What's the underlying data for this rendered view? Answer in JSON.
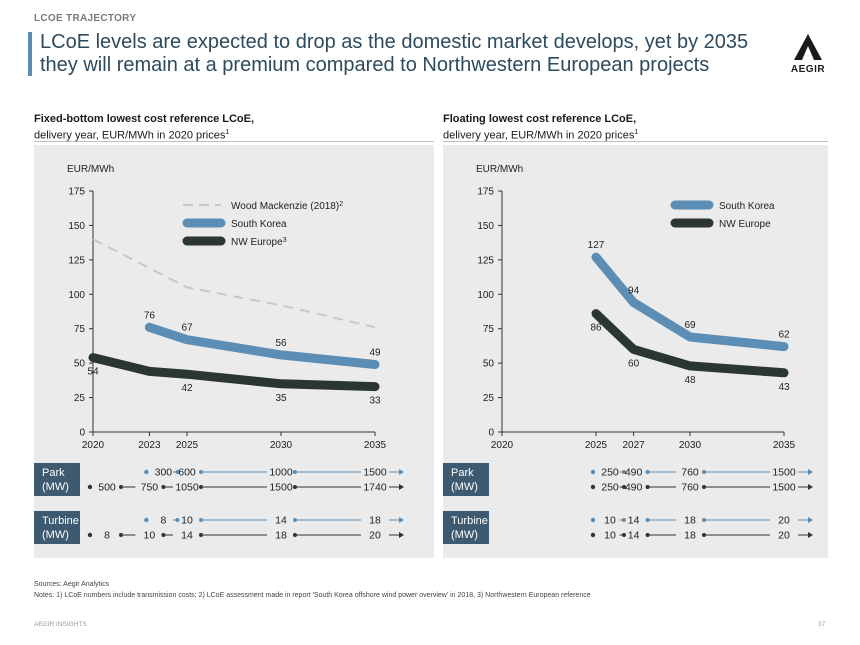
{
  "header": {
    "kicker": "LCOE TRAJECTORY",
    "title": "LCoE levels are expected to drop as the domestic market develops, yet by 2035 they will remain at a premium compared to Northwestern European projects",
    "logo_text": "AEGIR"
  },
  "left": {
    "heading": "Fixed-bottom lowest cost reference LCoE,",
    "subheading": "delivery year, EUR/MWh in 2020 prices",
    "sup": "1"
  },
  "right": {
    "heading": "Floating lowest cost reference LCoE,",
    "subheading": "delivery year, EUR/MWh in 2020 prices",
    "sup": "1"
  },
  "chart_data": [
    {
      "type": "line",
      "title": "Fixed-bottom lowest cost reference LCoE",
      "ylabel": "EUR/MWh",
      "ylim": [
        0,
        175
      ],
      "yticks": [
        0,
        25,
        50,
        75,
        100,
        125,
        150,
        175
      ],
      "xlim": [
        2020,
        2035
      ],
      "xticks": [
        2020,
        2023,
        2025,
        2030,
        2035
      ],
      "legend": [
        {
          "key": "wm",
          "label": "Wood Mackenzie (2018)",
          "sup": "2"
        },
        {
          "key": "kr",
          "label": "South Korea",
          "sup": ""
        },
        {
          "key": "nw",
          "label": "NW Europe",
          "sup": "3"
        }
      ],
      "series": [
        {
          "key": "wm",
          "name": "Wood Mackenzie (2018)",
          "color": "#c8c8c8",
          "dashed": true,
          "points": [
            [
              2020,
              140
            ],
            [
              2025,
              105
            ],
            [
              2030,
              92
            ],
            [
              2035,
              76
            ]
          ],
          "labels": []
        },
        {
          "key": "kr",
          "name": "South Korea",
          "color": "#5b8db5",
          "points": [
            [
              2023,
              76
            ],
            [
              2025,
              67
            ],
            [
              2030,
              56
            ],
            [
              2035,
              49
            ]
          ],
          "labels": [
            {
              "x": 2023,
              "v": 76,
              "pos": "above"
            },
            {
              "x": 2025,
              "v": 67,
              "pos": "above"
            },
            {
              "x": 2030,
              "v": 56,
              "pos": "above"
            },
            {
              "x": 2035,
              "v": 49,
              "pos": "above"
            }
          ]
        },
        {
          "key": "nw",
          "name": "NW Europe",
          "color": "#2b3533",
          "points": [
            [
              2020,
              54
            ],
            [
              2023,
              44
            ],
            [
              2025,
              42
            ],
            [
              2030,
              35
            ],
            [
              2035,
              33
            ]
          ],
          "labels": [
            {
              "x": 2020,
              "v": 54,
              "pos": "below"
            },
            {
              "x": 2025,
              "v": 42,
              "pos": "below"
            },
            {
              "x": 2030,
              "v": 35,
              "pos": "below"
            },
            {
              "x": 2035,
              "v": 33,
              "pos": "below"
            }
          ]
        }
      ],
      "park": {
        "label": [
          "Park",
          "(MW)"
        ],
        "kr": {
          "start_x": 2023,
          "values": [
            "300",
            "600",
            "1000",
            "1500"
          ]
        },
        "nw": {
          "start_x": 2020,
          "values": [
            "500",
            "750",
            "1050",
            "1500",
            "1740"
          ]
        }
      },
      "turbine": {
        "label": [
          "Turbine",
          "(MW)"
        ],
        "kr": {
          "start_x": 2023,
          "values": [
            "8",
            "10",
            "14",
            "18"
          ]
        },
        "nw": {
          "start_x": 2020,
          "values": [
            "8",
            "10",
            "14",
            "18",
            "20"
          ]
        }
      }
    },
    {
      "type": "line",
      "title": "Floating lowest cost reference LCoE",
      "ylabel": "EUR/MWh",
      "ylim": [
        0,
        175
      ],
      "yticks": [
        0,
        25,
        50,
        75,
        100,
        125,
        150,
        175
      ],
      "xlim": [
        2020,
        2035
      ],
      "xticks": [
        2020,
        2025,
        2027,
        2030,
        2035
      ],
      "legend": [
        {
          "key": "kr",
          "label": "South Korea",
          "sup": ""
        },
        {
          "key": "nw",
          "label": "NW Europe",
          "sup": ""
        }
      ],
      "series": [
        {
          "key": "kr",
          "name": "South Korea",
          "color": "#5b8db5",
          "points": [
            [
              2025,
              127
            ],
            [
              2027,
              94
            ],
            [
              2030,
              69
            ],
            [
              2035,
              62
            ]
          ],
          "labels": [
            {
              "x": 2025,
              "v": 127,
              "pos": "above"
            },
            {
              "x": 2027,
              "v": 94,
              "pos": "above"
            },
            {
              "x": 2030,
              "v": 69,
              "pos": "above"
            },
            {
              "x": 2035,
              "v": 62,
              "pos": "above"
            }
          ]
        },
        {
          "key": "nw",
          "name": "NW Europe",
          "color": "#2b3533",
          "points": [
            [
              2025,
              86
            ],
            [
              2027,
              60
            ],
            [
              2030,
              48
            ],
            [
              2035,
              43
            ]
          ],
          "labels": [
            {
              "x": 2025,
              "v": 86,
              "pos": "below"
            },
            {
              "x": 2027,
              "v": 60,
              "pos": "below"
            },
            {
              "x": 2030,
              "v": 48,
              "pos": "below"
            },
            {
              "x": 2035,
              "v": 43,
              "pos": "below"
            }
          ]
        }
      ],
      "park": {
        "label": [
          "Park",
          "(MW)"
        ],
        "kr": {
          "start_x": 2025,
          "values": [
            "250",
            "490",
            "760",
            "1500"
          ]
        },
        "nw": {
          "start_x": 2025,
          "values": [
            "250",
            "490",
            "760",
            "1500"
          ]
        }
      },
      "turbine": {
        "label": [
          "Turbine",
          "(MW)"
        ],
        "kr": {
          "start_x": 2025,
          "values": [
            "10",
            "14",
            "18",
            "20"
          ]
        },
        "nw": {
          "start_x": 2025,
          "values": [
            "10",
            "14",
            "18",
            "20"
          ]
        }
      }
    }
  ],
  "footer": {
    "sources": "Sources: Aegir Analytics",
    "notes": "Notes: 1) LCoE numbers include transmission costs; 2) LCoE assessment made in report 'South Korea offshore wind power overview' in 2018, 3) Northwestern European reference",
    "brand": "AEGIR INSIGHTS",
    "page": "37"
  }
}
